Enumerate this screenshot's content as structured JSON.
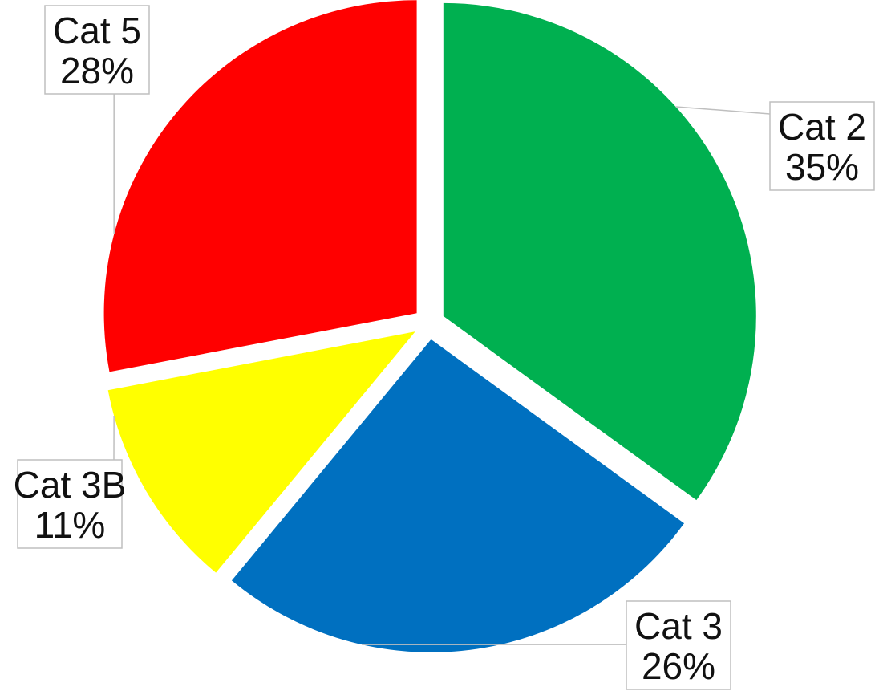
{
  "chart_data": {
    "type": "pie",
    "title": "",
    "start_angle_deg": 0,
    "direction": "clockwise",
    "exploded": true,
    "slices": [
      {
        "label": "Cat 2",
        "value": 35,
        "percent_label": "35%",
        "color": "#00b050"
      },
      {
        "label": "Cat 3",
        "value": 26,
        "percent_label": "26%",
        "color": "#0070c0"
      },
      {
        "label": "Cat 3B",
        "value": 11,
        "percent_label": "11%",
        "color": "#ffff00"
      },
      {
        "label": "Cat 5",
        "value": 28,
        "percent_label": "28%",
        "color": "#ff0000"
      }
    ],
    "legend": "none",
    "data_labels": "category-and-percent"
  }
}
